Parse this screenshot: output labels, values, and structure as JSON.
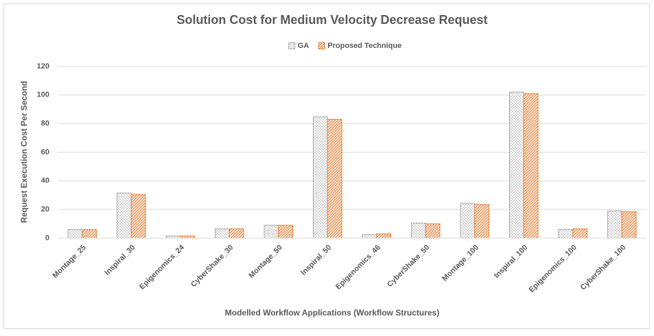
{
  "chart_data": {
    "type": "bar",
    "title": "Solution Cost for Medium Velocity Decrease Request",
    "x_label": "Modelled Workflow Applications (Workflow Structures)",
    "y_label": "Request Execution Cost Per Second",
    "categories": [
      "Montage_25",
      "Inspiral_30",
      "Epigenomics_24",
      "CyberShake_30",
      "Montage_50",
      "Inspiral_50",
      "Epigenomics_46",
      "CyberShake_50",
      "Montage_100",
      "Inspiral_100",
      "Epigenomics_100",
      "CyberShake_100"
    ],
    "series": [
      {
        "name": "GA",
        "color": "#a5a5a5",
        "values": [
          6,
          31.5,
          1.5,
          6.5,
          9,
          84.7,
          2.5,
          10.5,
          24.4,
          102,
          6,
          19
        ]
      },
      {
        "name": "Proposed Technique",
        "color": "#ed7d31",
        "values": [
          6,
          30.5,
          1.5,
          6.5,
          9,
          83,
          3,
          10,
          23.5,
          101,
          6.5,
          18.5
        ]
      }
    ],
    "ylim": [
      0,
      120
    ],
    "yticks": [
      0,
      20,
      40,
      60,
      80,
      100,
      120
    ],
    "grid": true,
    "legend": "top"
  }
}
